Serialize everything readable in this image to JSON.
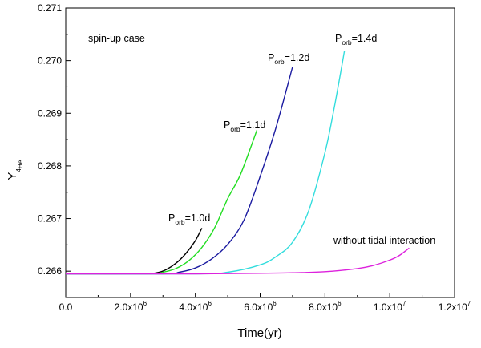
{
  "chart_data": {
    "type": "line",
    "title": "",
    "xlabel": "Time(yr)",
    "ylabel": {
      "base": "Y",
      "subscript_sup": "4",
      "subscript": "He"
    },
    "xlim": [
      0,
      12000000
    ],
    "ylim": [
      0.2655,
      0.271
    ],
    "x_ticks": [
      {
        "value": 0,
        "mantissa": "0.0",
        "exponent": ""
      },
      {
        "value": 2000000,
        "mantissa": "2.0x10",
        "exponent": "6"
      },
      {
        "value": 4000000,
        "mantissa": "4.0x10",
        "exponent": "6"
      },
      {
        "value": 6000000,
        "mantissa": "6.0x10",
        "exponent": "6"
      },
      {
        "value": 8000000,
        "mantissa": "8.0x10",
        "exponent": "6"
      },
      {
        "value": 10000000,
        "mantissa": "1.0x10",
        "exponent": "7"
      },
      {
        "value": 12000000,
        "mantissa": "1.2x10",
        "exponent": "7"
      }
    ],
    "y_ticks": [
      {
        "value": 0.266,
        "label": "0.266"
      },
      {
        "value": 0.267,
        "label": "0.267"
      },
      {
        "value": 0.268,
        "label": "0.268"
      },
      {
        "value": 0.269,
        "label": "0.269"
      },
      {
        "value": 0.27,
        "label": "0.270"
      },
      {
        "value": 0.271,
        "label": "0.271"
      }
    ],
    "annotation": "spin-up case",
    "series": [
      {
        "name": "Porb=1.0d",
        "base": "P",
        "sub": "orb",
        "suffix": "=1.0d",
        "color": "#000000",
        "x": [
          0,
          2300000,
          2800000,
          3100000,
          3400000,
          3700000,
          4000000,
          4200000
        ],
        "y": [
          0.26595,
          0.26595,
          0.26597,
          0.26603,
          0.26615,
          0.26633,
          0.26658,
          0.26682
        ]
      },
      {
        "name": "Porb=1.1d",
        "base": "P",
        "sub": "orb",
        "suffix": "=1.1d",
        "color": "#22dd22",
        "x": [
          0,
          2600000,
          3000000,
          3400000,
          3800000,
          4200000,
          4600000,
          5000000,
          5400000,
          5900000
        ],
        "y": [
          0.26595,
          0.26595,
          0.26598,
          0.26605,
          0.2662,
          0.26645,
          0.26683,
          0.26738,
          0.26785,
          0.26868
        ]
      },
      {
        "name": "Porb=1.2d",
        "base": "P",
        "sub": "orb",
        "suffix": "=1.2d",
        "color": "#1a1aa0",
        "x": [
          0,
          3000000,
          3500000,
          4000000,
          4500000,
          5000000,
          5500000,
          6000000,
          6500000,
          7000000
        ],
        "y": [
          0.26595,
          0.26595,
          0.26598,
          0.26606,
          0.26623,
          0.26651,
          0.26697,
          0.2678,
          0.26875,
          0.26988
        ]
      },
      {
        "name": "Porb=1.4d",
        "base": "P",
        "sub": "orb",
        "suffix": "=1.4d",
        "color": "#33dddd",
        "x": [
          0,
          4000000,
          5000000,
          6000000,
          6500000,
          7000000,
          7500000,
          8000000,
          8300000,
          8600000
        ],
        "y": [
          0.26595,
          0.26595,
          0.26598,
          0.26612,
          0.26628,
          0.26655,
          0.26715,
          0.26825,
          0.26915,
          0.27018
        ]
      },
      {
        "name": "without tidal interaction",
        "base": "without tidal interaction",
        "sub": "",
        "suffix": "",
        "color": "#dd22dd",
        "x": [
          0,
          4000000,
          6000000,
          7000000,
          8000000,
          9000000,
          9500000,
          10000000,
          10300000,
          10600000
        ],
        "y": [
          0.26595,
          0.26595,
          0.26596,
          0.26597,
          0.26599,
          0.26605,
          0.26611,
          0.26621,
          0.2663,
          0.26644
        ]
      }
    ]
  }
}
